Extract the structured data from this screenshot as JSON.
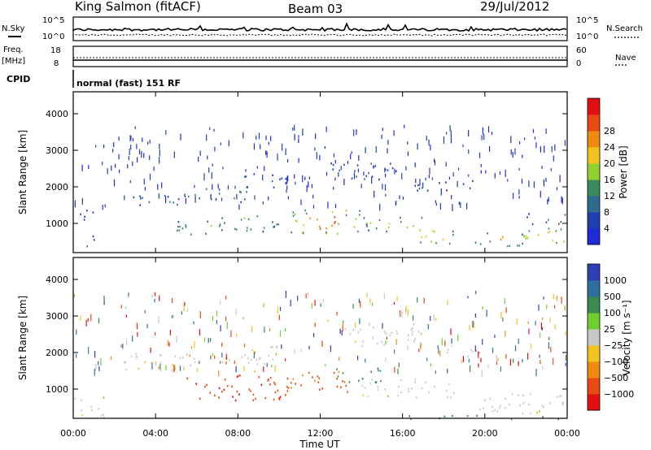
{
  "header": {
    "station": "King Salmon (fitACF)",
    "beam": "Beam 03",
    "date": "29/Jul/2012"
  },
  "top_panel": {
    "left_label": "N.Sky",
    "left_ticks": [
      "10^5",
      "10^0"
    ],
    "right_ticks": [
      "10^5",
      "10^0"
    ],
    "right_label": "N.Search"
  },
  "freq_panel": {
    "left_label_1": "Freq.",
    "left_label_2": "[MHz]",
    "left_ticks": [
      "18",
      "8"
    ],
    "right_ticks": [
      "60",
      "0"
    ],
    "right_label": "Nave"
  },
  "cpid": {
    "label": "CPID",
    "text": "normal (fast) 151 RF"
  },
  "chart_data": [
    {
      "type": "heatmap",
      "name": "power",
      "ylabel": "Slant Range [km]",
      "xlabel": "",
      "x_range_hours": [
        0,
        24
      ],
      "ylim": [
        200,
        4600
      ],
      "yticks": [
        1000,
        2000,
        3000,
        4000
      ],
      "colorbar": {
        "label": "Power [dB]",
        "ticks": [
          "4",
          "8",
          "12",
          "16",
          "20",
          "24",
          "28"
        ],
        "colors": [
          "#1f2bd6",
          "#1f3fb0",
          "#2f6b8f",
          "#3b8a5c",
          "#8fd12f",
          "#f2c21d",
          "#f08a10",
          "#e84a10",
          "#e01010"
        ]
      },
      "regions": [
        {
          "t": [
            0.3,
            1.0
          ],
          "r": [
            350,
            700
          ],
          "level": 0.25
        },
        {
          "t": [
            0.0,
            1.2
          ],
          "r": [
            1100,
            1400
          ],
          "level": 0.15
        },
        {
          "t": [
            2.5,
            5.5
          ],
          "r": [
            1500,
            1800
          ],
          "level": 0.3
        },
        {
          "t": [
            5.0,
            8.5
          ],
          "r": [
            1600,
            2000
          ],
          "level": 0.35
        },
        {
          "t": [
            5.0,
            7.5
          ],
          "r": [
            700,
            1100
          ],
          "level": 0.4
        },
        {
          "t": [
            7.0,
            10.0
          ],
          "r": [
            800,
            1300
          ],
          "level": 0.45
        },
        {
          "t": [
            8.0,
            10.5
          ],
          "r": [
            2000,
            2400
          ],
          "level": 0.2
        },
        {
          "t": [
            10.5,
            14.0
          ],
          "r": [
            700,
            1400
          ],
          "level": 0.65
        },
        {
          "t": [
            12.5,
            16.0
          ],
          "r": [
            2200,
            2700
          ],
          "level": 0.2
        },
        {
          "t": [
            14.0,
            17.0
          ],
          "r": [
            800,
            1200
          ],
          "level": 0.45
        },
        {
          "t": [
            16.5,
            18.5
          ],
          "r": [
            450,
            900
          ],
          "level": 0.55
        },
        {
          "t": [
            16.5,
            19.5
          ],
          "r": [
            1900,
            2200
          ],
          "level": 0.15
        },
        {
          "t": [
            19.5,
            22.0
          ],
          "r": [
            400,
            800
          ],
          "level": 0.55
        },
        {
          "t": [
            21.5,
            24.0
          ],
          "r": [
            400,
            900
          ],
          "level": 0.6
        },
        {
          "t": [
            22.0,
            24.0
          ],
          "r": [
            1000,
            1300
          ],
          "level": 0.3
        }
      ]
    },
    {
      "type": "heatmap",
      "name": "velocity",
      "ylabel": "Slant Range [km]",
      "xlabel": "Time UT",
      "x_range_hours": [
        0,
        24
      ],
      "xticks": [
        "00:00",
        "04:00",
        "08:00",
        "12:00",
        "16:00",
        "20:00",
        "00:00"
      ],
      "ylim": [
        200,
        4600
      ],
      "yticks": [
        1000,
        2000,
        3000,
        4000
      ],
      "colorbar": {
        "label": "Velocity [m s⁻¹]",
        "ticks": [
          "1000",
          "500",
          "100",
          "25",
          "−25",
          "−100",
          "−500",
          "−1000"
        ],
        "colors": [
          "#2f3fb8",
          "#2f6fa0",
          "#3a8a52",
          "#6fcf2f",
          "#c8c8c8",
          "#f2c21d",
          "#f08a10",
          "#e84a10",
          "#e01010"
        ]
      },
      "regions": [
        {
          "t": [
            0.0,
            1.5
          ],
          "r": [
            250,
            800
          ],
          "v": 0.5
        },
        {
          "t": [
            2.0,
            6.0
          ],
          "r": [
            1500,
            2000
          ],
          "v": 0.5
        },
        {
          "t": [
            5.5,
            10.5
          ],
          "r": [
            700,
            1400
          ],
          "v": 0.85
        },
        {
          "t": [
            7.0,
            10.0
          ],
          "r": [
            1700,
            2200
          ],
          "v": 0.5
        },
        {
          "t": [
            10.5,
            13.5
          ],
          "r": [
            900,
            1500
          ],
          "v": 0.8
        },
        {
          "t": [
            12.5,
            15.0
          ],
          "r": [
            1200,
            1600
          ],
          "v": 0.25
        },
        {
          "t": [
            13.0,
            17.0
          ],
          "r": [
            2200,
            2800
          ],
          "v": 0.5
        },
        {
          "t": [
            14.0,
            18.5
          ],
          "r": [
            800,
            1300
          ],
          "v": 0.5
        },
        {
          "t": [
            18.0,
            20.0
          ],
          "r": [
            1900,
            2200
          ],
          "v": 0.5
        },
        {
          "t": [
            19.5,
            24.0
          ],
          "r": [
            350,
            900
          ],
          "v": 0.5
        },
        {
          "t": [
            16.0,
            24.0
          ],
          "r": [
            200,
            300
          ],
          "v": 0.25
        }
      ]
    }
  ]
}
